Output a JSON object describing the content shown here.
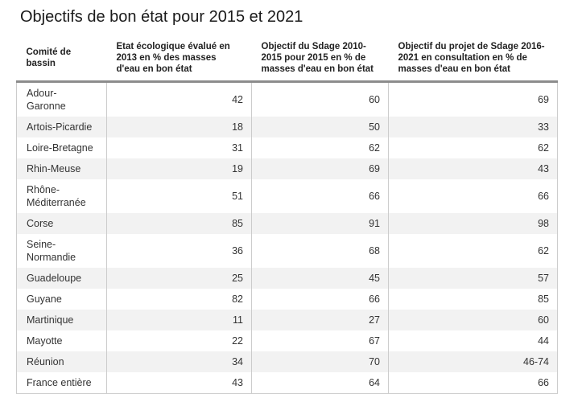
{
  "title": "Objectifs de bon état pour 2015 et 2021",
  "colors": {
    "header_rule": "#8c8c8c",
    "cell_border": "#cccccc",
    "row_alternate": "#f2f2f2",
    "text": "#333333"
  },
  "table": {
    "columns": [
      "Comité de\nbassin",
      "Etat écologique évalué en\n2013 en % des masses\nd'eau en bon état",
      "Objectif du Sdage 2010-\n2015 pour 2015 en % de\nmasses d'eau en bon état",
      "Objectif du projet de Sdage 2016-\n2021 en consultation en % de\nmasses d'eau en bon état"
    ],
    "rows": [
      {
        "name": "Adour-\nGaronne",
        "values": [
          "42",
          "60",
          "69"
        ]
      },
      {
        "name": "Artois-Picardie",
        "values": [
          "18",
          "50",
          "33"
        ]
      },
      {
        "name": "Loire-Bretagne",
        "values": [
          "31",
          "62",
          "62"
        ]
      },
      {
        "name": "Rhin-Meuse",
        "values": [
          "19",
          "69",
          "43"
        ]
      },
      {
        "name": "Rhône-\nMéditerranée",
        "values": [
          "51",
          "66",
          "66"
        ]
      },
      {
        "name": "Corse",
        "values": [
          "85",
          "91",
          "98"
        ]
      },
      {
        "name": "Seine-\nNormandie",
        "values": [
          "36",
          "68",
          "62"
        ]
      },
      {
        "name": "Guadeloupe",
        "values": [
          "25",
          "45",
          "57"
        ]
      },
      {
        "name": "Guyane",
        "values": [
          "82",
          "66",
          "85"
        ]
      },
      {
        "name": "Martinique",
        "values": [
          "11",
          "27",
          "60"
        ]
      },
      {
        "name": "Mayotte",
        "values": [
          "22",
          "67",
          "44"
        ]
      },
      {
        "name": "Réunion",
        "values": [
          "34",
          "70",
          "46-74"
        ]
      },
      {
        "name": "France entière",
        "values": [
          "43",
          "64",
          "66"
        ]
      }
    ]
  },
  "chart_data": {
    "type": "table",
    "title": "Objectifs de bon état pour 2015 et 2021",
    "columns": [
      "Comité de bassin",
      "Etat écologique évalué en 2013 en % des masses d'eau en bon état",
      "Objectif du Sdage 2010-2015 pour 2015 en % de masses d'eau en bon état",
      "Objectif du projet de Sdage 2016-2021 en consultation en % de masses d'eau en bon état"
    ],
    "rows": [
      [
        "Adour-Garonne",
        42,
        60,
        69
      ],
      [
        "Artois-Picardie",
        18,
        50,
        33
      ],
      [
        "Loire-Bretagne",
        31,
        62,
        62
      ],
      [
        "Rhin-Meuse",
        19,
        69,
        43
      ],
      [
        "Rhône-Méditerranée",
        51,
        66,
        66
      ],
      [
        "Corse",
        85,
        91,
        98
      ],
      [
        "Seine-Normandie",
        36,
        68,
        62
      ],
      [
        "Guadeloupe",
        25,
        45,
        57
      ],
      [
        "Guyane",
        82,
        66,
        85
      ],
      [
        "Martinique",
        11,
        27,
        60
      ],
      [
        "Mayotte",
        22,
        67,
        44
      ],
      [
        "Réunion",
        34,
        70,
        "46-74"
      ],
      [
        "France entière",
        43,
        64,
        66
      ]
    ]
  }
}
